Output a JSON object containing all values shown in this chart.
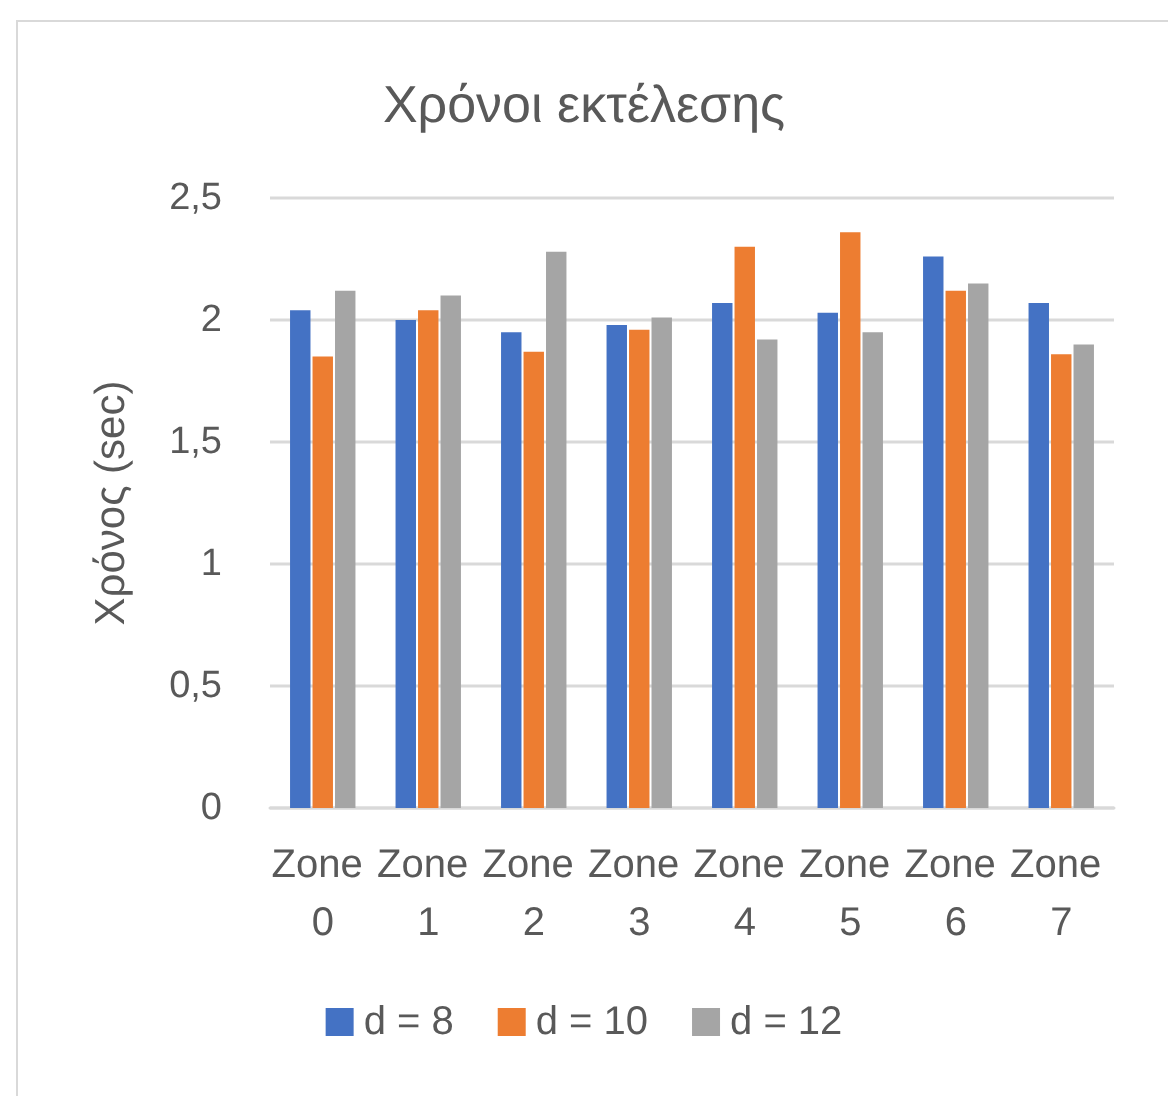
{
  "chart_data": {
    "type": "bar",
    "title": "Χρόνοι εκτέλεσης",
    "ylabel": "Χρόνος (sec)",
    "categories": [
      "Zone 0",
      "Zone 1",
      "Zone 2",
      "Zone 3",
      "Zone 4",
      "Zone 5",
      "Zone 6",
      "Zone 7"
    ],
    "series": [
      {
        "name": "d = 8",
        "color": "#4472c4",
        "values": [
          2.04,
          2.0,
          1.95,
          1.98,
          2.07,
          2.03,
          2.26,
          2.07
        ]
      },
      {
        "name": "d = 10",
        "color": "#ed7d31",
        "values": [
          1.85,
          2.04,
          1.87,
          1.96,
          2.3,
          2.36,
          2.12,
          1.86
        ]
      },
      {
        "name": "d = 12",
        "color": "#a5a5a5",
        "values": [
          2.12,
          2.1,
          2.28,
          2.01,
          1.92,
          1.95,
          2.15,
          1.9
        ]
      }
    ],
    "ylim": [
      0,
      2.5
    ],
    "yticks": [
      0,
      {
        "value": 0.5,
        "label": "0,5"
      },
      1,
      {
        "value": 1.5,
        "label": "1,5"
      },
      2,
      {
        "value": 2.5,
        "label": "2,5"
      }
    ],
    "grid": "y",
    "legend": "bottom"
  }
}
